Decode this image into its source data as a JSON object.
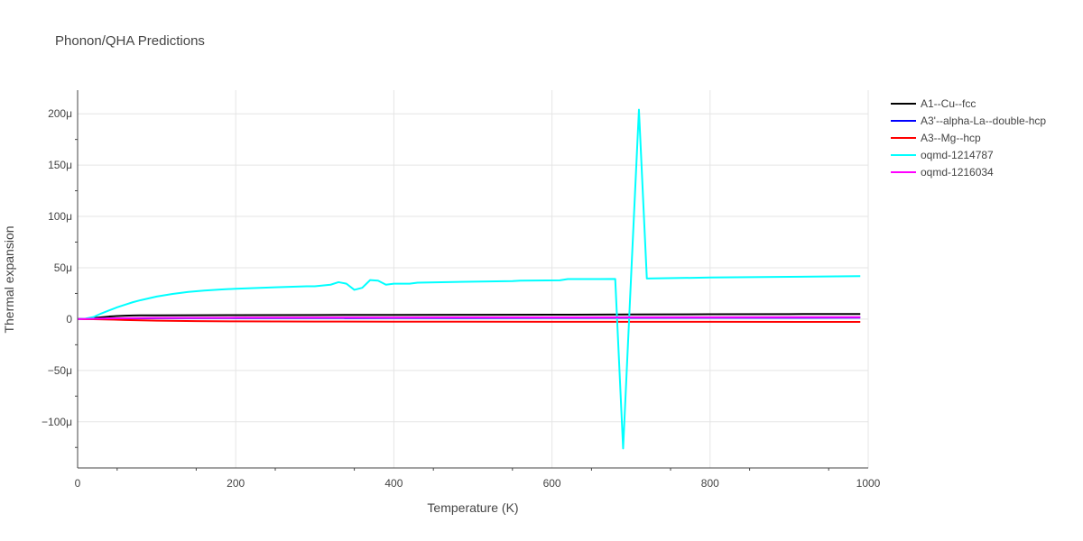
{
  "chart_data": {
    "type": "line",
    "title": "Phonon/QHA Predictions",
    "xlabel": "Temperature (K)",
    "ylabel": "Thermal expansion",
    "xlim": [
      0,
      1000
    ],
    "ylim": [
      -0.000145,
      0.000223
    ],
    "x_ticks": [
      0,
      200,
      400,
      600,
      800,
      1000
    ],
    "x_tick_labels": [
      "0",
      "200",
      "400",
      "600",
      "800",
      "1000"
    ],
    "y_ticks": [
      -0.0001,
      -5e-05,
      0,
      5e-05,
      0.0001,
      0.00015,
      0.0002
    ],
    "y_tick_labels": [
      "−100μ",
      "−50μ",
      "0",
      "50μ",
      "100μ",
      "150μ",
      "200μ"
    ],
    "grid": true,
    "legend_position": "right",
    "series": [
      {
        "name": "A1--Cu--fcc",
        "color": "#000000",
        "x": [
          0,
          10,
          20,
          30,
          40,
          50,
          60,
          70,
          80,
          100,
          150,
          200,
          300,
          400,
          500,
          600,
          700,
          800,
          900,
          990
        ],
        "y": [
          0,
          3e-07,
          1e-06,
          1.8e-06,
          2.5e-06,
          3e-06,
          3.3e-06,
          3.5e-06,
          3.6e-06,
          3.7e-06,
          3.8e-06,
          3.9e-06,
          4e-06,
          4.1e-06,
          4.2e-06,
          4.3e-06,
          4.5e-06,
          4.7e-06,
          4.9e-06,
          5e-06
        ]
      },
      {
        "name": "A3'--alpha-La--double-hcp",
        "color": "#0000ff",
        "x": [
          0,
          20,
          50,
          100,
          200,
          400,
          600,
          800,
          990
        ],
        "y": [
          0,
          2e-07,
          6e-07,
          9e-07,
          1e-06,
          1.1e-06,
          1.2e-06,
          1.3e-06,
          1.4e-06
        ]
      },
      {
        "name": "A3--Mg--hcp",
        "color": "#ff0000",
        "x": [
          0,
          20,
          40,
          60,
          80,
          100,
          150,
          200,
          300,
          400,
          600,
          800,
          990
        ],
        "y": [
          0,
          -1e-07,
          -4e-07,
          -8e-07,
          -1.2e-06,
          -1.5e-06,
          -2e-06,
          -2.2e-06,
          -2.4e-06,
          -2.5e-06,
          -2.6e-06,
          -2.6e-06,
          -2.7e-06
        ]
      },
      {
        "name": "oqmd-1214787",
        "color": "#00ffff",
        "x": [
          0,
          10,
          20,
          30,
          40,
          50,
          60,
          70,
          80,
          100,
          120,
          140,
          160,
          180,
          200,
          250,
          290,
          300,
          320,
          330,
          340,
          350,
          360,
          370,
          380,
          390,
          400,
          420,
          430,
          500,
          550,
          560,
          610,
          620,
          660,
          680,
          690,
          700,
          710,
          720,
          800,
          900,
          990
        ],
        "y": [
          0,
          5e-07,
          2e-06,
          5.5e-06,
          8.5e-06,
          1.15e-05,
          1.4e-05,
          1.65e-05,
          1.85e-05,
          2.2e-05,
          2.45e-05,
          2.65e-05,
          2.78e-05,
          2.88e-05,
          2.96e-05,
          3.1e-05,
          3.2e-05,
          3.2e-05,
          3.35e-05,
          3.6e-05,
          3.45e-05,
          2.85e-05,
          3.05e-05,
          3.8e-05,
          3.75e-05,
          3.35e-05,
          3.45e-05,
          3.45e-05,
          3.55e-05,
          3.65e-05,
          3.7e-05,
          3.75e-05,
          3.78e-05,
          3.9e-05,
          3.9e-05,
          3.91e-05,
          -0.000126,
          4e-05,
          0.000204,
          3.95e-05,
          4.05e-05,
          4.12e-05,
          4.18e-05
        ]
      },
      {
        "name": "oqmd-1216034",
        "color": "#ff00ff",
        "x": [
          0,
          20,
          50,
          100,
          200,
          400,
          600,
          800,
          990
        ],
        "y": [
          0,
          3e-07,
          8e-07,
          1.2e-06,
          1.4e-06,
          1.6e-06,
          1.7e-06,
          1.8e-06,
          1.9e-06
        ]
      }
    ]
  }
}
